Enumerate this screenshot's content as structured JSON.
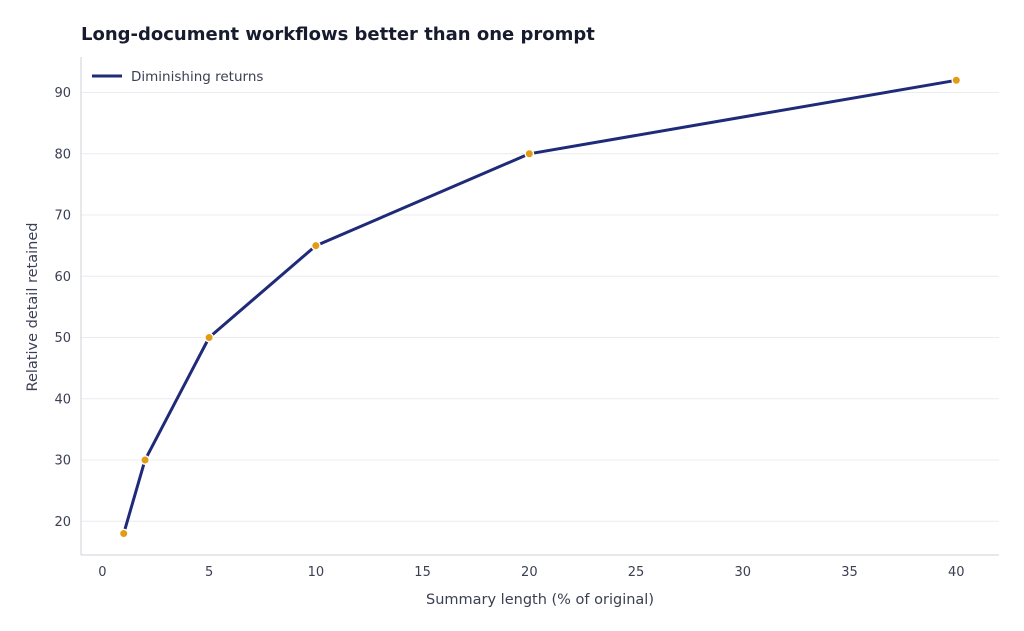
{
  "chart_data": {
    "type": "line",
    "title": "Long-document workflows better than one prompt",
    "xlabel": "Summary length (% of original)",
    "ylabel": "Relative detail retained",
    "xlim": [
      -1,
      42
    ],
    "ylim": [
      14.5,
      95.8
    ],
    "xticks": [
      0,
      5,
      10,
      15,
      20,
      25,
      30,
      35,
      40
    ],
    "yticks": [
      20,
      30,
      40,
      50,
      60,
      70,
      80,
      90
    ],
    "grid": "horizontal",
    "legend_position": "top-left",
    "series": [
      {
        "name": "Diminishing returns",
        "line_color": "#1f2a78",
        "marker_color": "#e49b14",
        "points": [
          {
            "x": 1,
            "y": 18
          },
          {
            "x": 2,
            "y": 30
          },
          {
            "x": 5,
            "y": 50
          },
          {
            "x": 10,
            "y": 65
          },
          {
            "x": 20,
            "y": 80
          },
          {
            "x": 40,
            "y": 92
          }
        ]
      }
    ]
  }
}
